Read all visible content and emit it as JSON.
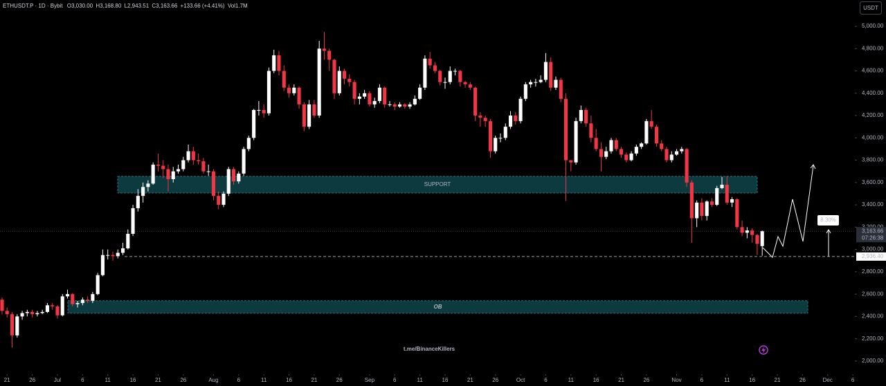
{
  "header": {
    "symbol": "ETHUSDT.P · 1D · Bybit",
    "open": "O3,030.00",
    "high": "H3,168.80",
    "low": "L2,943.51",
    "close": "C3,163.66",
    "change": "+133.66 (+4.41%)",
    "volume": "Vol1.7M"
  },
  "chart_data": {
    "type": "candlestick",
    "up_color": "#ffffff",
    "down_color": "#f23645",
    "candles": [
      [
        2550,
        2570,
        2420,
        2450
      ],
      [
        2450,
        2480,
        2390,
        2420
      ],
      [
        2420,
        2440,
        2120,
        2230
      ],
      [
        2230,
        2420,
        2210,
        2400
      ],
      [
        2400,
        2450,
        2370,
        2430
      ],
      [
        2430,
        2460,
        2400,
        2440
      ],
      [
        2440,
        2460,
        2390,
        2420
      ],
      [
        2420,
        2450,
        2400,
        2430
      ],
      [
        2430,
        2460,
        2420,
        2440
      ],
      [
        2440,
        2520,
        2430,
        2500
      ],
      [
        2500,
        2520,
        2460,
        2490
      ],
      [
        2490,
        2500,
        2380,
        2410
      ],
      [
        2410,
        2600,
        2400,
        2580
      ],
      [
        2580,
        2640,
        2560,
        2600
      ],
      [
        2600,
        2610,
        2490,
        2510
      ],
      [
        2510,
        2540,
        2480,
        2520
      ],
      [
        2520,
        2570,
        2500,
        2550
      ],
      [
        2550,
        2580,
        2520,
        2540
      ],
      [
        2540,
        2620,
        2520,
        2600
      ],
      [
        2600,
        2790,
        2590,
        2770
      ],
      [
        2770,
        3000,
        2760,
        2950
      ],
      [
        2950,
        3000,
        2910,
        2950
      ],
      [
        2950,
        2980,
        2900,
        2940
      ],
      [
        2940,
        3000,
        2920,
        2970
      ],
      [
        2970,
        3060,
        2950,
        3010
      ],
      [
        3010,
        3180,
        3000,
        3140
      ],
      [
        3140,
        3400,
        3120,
        3370
      ],
      [
        3370,
        3540,
        3340,
        3480
      ],
      [
        3480,
        3600,
        3420,
        3560
      ],
      [
        3560,
        3620,
        3520,
        3590
      ],
      [
        3590,
        3780,
        3580,
        3760
      ],
      [
        3760,
        3860,
        3700,
        3750
      ],
      [
        3750,
        3800,
        3640,
        3720
      ],
      [
        3720,
        3760,
        3520,
        3630
      ],
      [
        3630,
        3740,
        3600,
        3700
      ],
      [
        3700,
        3760,
        3680,
        3720
      ],
      [
        3720,
        3830,
        3700,
        3800
      ],
      [
        3800,
        3940,
        3780,
        3880
      ],
      [
        3880,
        3920,
        3760,
        3800
      ],
      [
        3800,
        3860,
        3760,
        3790
      ],
      [
        3790,
        3820,
        3680,
        3700
      ],
      [
        3700,
        3760,
        3660,
        3700
      ],
      [
        3700,
        3720,
        3440,
        3480
      ],
      [
        3480,
        3520,
        3360,
        3400
      ],
      [
        3400,
        3520,
        3380,
        3500
      ],
      [
        3500,
        3740,
        3480,
        3720
      ],
      [
        3720,
        3740,
        3580,
        3610
      ],
      [
        3610,
        3700,
        3590,
        3680
      ],
      [
        3680,
        3920,
        3660,
        3900
      ],
      [
        3900,
        4020,
        3880,
        4000
      ],
      [
        4000,
        4260,
        3980,
        4250
      ],
      [
        4250,
        4330,
        4200,
        4250
      ],
      [
        4250,
        4300,
        4180,
        4220
      ],
      [
        4220,
        4630,
        4200,
        4600
      ],
      [
        4600,
        4790,
        4580,
        4740
      ],
      [
        4740,
        4780,
        4560,
        4600
      ],
      [
        4600,
        4650,
        4420,
        4450
      ],
      [
        4450,
        4480,
        4360,
        4400
      ],
      [
        4400,
        4480,
        4380,
        4450
      ],
      [
        4450,
        4460,
        4260,
        4300
      ],
      [
        4300,
        4320,
        4060,
        4100
      ],
      [
        4100,
        4340,
        4080,
        4300
      ],
      [
        4300,
        4340,
        4180,
        4200
      ],
      [
        4200,
        4870,
        4180,
        4800
      ],
      [
        4800,
        4950,
        4700,
        4780
      ],
      [
        4780,
        4800,
        4600,
        4700
      ],
      [
        4700,
        4710,
        4350,
        4400
      ],
      [
        4400,
        4640,
        4380,
        4600
      ],
      [
        4600,
        4620,
        4480,
        4530
      ],
      [
        4530,
        4570,
        4460,
        4500
      ],
      [
        4500,
        4520,
        4300,
        4350
      ],
      [
        4350,
        4400,
        4300,
        4370
      ],
      [
        4370,
        4430,
        4350,
        4400
      ],
      [
        4400,
        4420,
        4280,
        4300
      ],
      [
        4300,
        4360,
        4270,
        4330
      ],
      [
        4330,
        4480,
        4310,
        4450
      ],
      [
        4450,
        4460,
        4270,
        4300
      ],
      [
        4300,
        4330,
        4280,
        4300
      ],
      [
        4300,
        4320,
        4250,
        4280
      ],
      [
        4280,
        4320,
        4270,
        4300
      ],
      [
        4300,
        4310,
        4260,
        4280
      ],
      [
        4280,
        4320,
        4260,
        4300
      ],
      [
        4300,
        4380,
        4290,
        4350
      ],
      [
        4350,
        4480,
        4340,
        4450
      ],
      [
        4450,
        4740,
        4430,
        4710
      ],
      [
        4710,
        4770,
        4620,
        4650
      ],
      [
        4650,
        4680,
        4580,
        4600
      ],
      [
        4600,
        4610,
        4470,
        4500
      ],
      [
        4500,
        4540,
        4440,
        4500
      ],
      [
        4500,
        4640,
        4480,
        4600
      ],
      [
        4600,
        4620,
        4560,
        4600
      ],
      [
        4600,
        4610,
        4460,
        4500
      ],
      [
        4500,
        4510,
        4450,
        4480
      ],
      [
        4480,
        4500,
        4430,
        4450
      ],
      [
        4450,
        4460,
        4150,
        4200
      ],
      [
        4200,
        4230,
        4100,
        4180
      ],
      [
        4180,
        4200,
        4100,
        4150
      ],
      [
        4150,
        4170,
        3820,
        3880
      ],
      [
        3880,
        4020,
        3860,
        4000
      ],
      [
        4000,
        4040,
        3960,
        4000
      ],
      [
        4000,
        4130,
        3980,
        4100
      ],
      [
        4100,
        4240,
        4080,
        4200
      ],
      [
        4200,
        4230,
        4120,
        4150
      ],
      [
        4150,
        4370,
        4130,
        4350
      ],
      [
        4350,
        4500,
        4330,
        4480
      ],
      [
        4480,
        4520,
        4450,
        4500
      ],
      [
        4500,
        4530,
        4460,
        4500
      ],
      [
        4500,
        4560,
        4490,
        4520
      ],
      [
        4520,
        4760,
        4500,
        4680
      ],
      [
        4680,
        4720,
        4420,
        4450
      ],
      [
        4450,
        4550,
        4430,
        4520
      ],
      [
        4520,
        4540,
        4320,
        4350
      ],
      [
        4350,
        4400,
        3435,
        3800
      ],
      [
        3800,
        3800,
        3700,
        3780
      ],
      [
        3780,
        4180,
        3760,
        4150
      ],
      [
        4150,
        4290,
        4130,
        4250
      ],
      [
        4250,
        4270,
        4100,
        4130
      ],
      [
        4130,
        4200,
        3960,
        4000
      ],
      [
        4000,
        4080,
        3880,
        3900
      ],
      [
        3900,
        3960,
        3700,
        3830
      ],
      [
        3830,
        3920,
        3810,
        3880
      ],
      [
        3880,
        4000,
        3860,
        3980
      ],
      [
        3980,
        4000,
        3880,
        3900
      ],
      [
        3900,
        3920,
        3820,
        3850
      ],
      [
        3850,
        3870,
        3780,
        3800
      ],
      [
        3800,
        3880,
        3790,
        3860
      ],
      [
        3860,
        3940,
        3840,
        3920
      ],
      [
        3920,
        3960,
        3900,
        3950
      ],
      [
        3950,
        4170,
        3940,
        4150
      ],
      [
        4150,
        4250,
        4080,
        4100
      ],
      [
        4100,
        4120,
        3920,
        3950
      ],
      [
        3950,
        3980,
        3880,
        3900
      ],
      [
        3900,
        3920,
        3780,
        3800
      ],
      [
        3800,
        3880,
        3780,
        3850
      ],
      [
        3850,
        3900,
        3840,
        3880
      ],
      [
        3880,
        3920,
        3860,
        3900
      ],
      [
        3900,
        3910,
        3560,
        3600
      ],
      [
        3600,
        3620,
        3060,
        3280
      ],
      [
        3280,
        3440,
        3200,
        3420
      ],
      [
        3420,
        3460,
        3260,
        3300
      ],
      [
        3300,
        3440,
        3260,
        3430
      ],
      [
        3430,
        3460,
        3380,
        3400
      ],
      [
        3400,
        3570,
        3390,
        3550
      ],
      [
        3550,
        3650,
        3540,
        3580
      ],
      [
        3580,
        3660,
        3400,
        3420
      ],
      [
        3420,
        3470,
        3380,
        3450
      ],
      [
        3450,
        3460,
        3180,
        3200
      ],
      [
        3200,
        3260,
        3120,
        3150
      ],
      [
        3150,
        3200,
        3100,
        3170
      ],
      [
        3170,
        3190,
        3060,
        3130
      ],
      [
        3130,
        3140,
        2950,
        3050
      ],
      [
        3030,
        3168.8,
        2943.51,
        3163.66
      ]
    ],
    "ylim": [
      1888,
      5235.5
    ],
    "yticks": [
      {
        "value": 2000,
        "label": "2,000.00"
      },
      {
        "value": 2200,
        "label": "2,200.00"
      },
      {
        "value": 2400,
        "label": "2,400.00"
      },
      {
        "value": 2600,
        "label": "2,600.00"
      },
      {
        "value": 2800,
        "label": "2,800.00"
      },
      {
        "value": 3000,
        "label": "3,000.00"
      },
      {
        "value": 3200,
        "label": "3,200.00"
      },
      {
        "value": 3400,
        "label": "3,400.00"
      },
      {
        "value": 3600,
        "label": "3,600.00"
      },
      {
        "value": 3800,
        "label": "3,800.00"
      },
      {
        "value": 4000,
        "label": "4,000.00"
      },
      {
        "value": 4200,
        "label": "4,200.00"
      },
      {
        "value": 4400,
        "label": "4,400.00"
      },
      {
        "value": 4600,
        "label": "4,600.00"
      },
      {
        "value": 4800,
        "label": "4,800.00"
      },
      {
        "value": 5000,
        "label": "5,000.00"
      }
    ],
    "xlim": [
      -0.41,
      169.4
    ],
    "xticks": [
      {
        "value": 1,
        "label": "21"
      },
      {
        "value": 6,
        "label": "26"
      },
      {
        "value": 11,
        "label": "Jul"
      },
      {
        "value": 16,
        "label": "6"
      },
      {
        "value": 21,
        "label": "11"
      },
      {
        "value": 26,
        "label": "16"
      },
      {
        "value": 31,
        "label": "21"
      },
      {
        "value": 36,
        "label": "26"
      },
      {
        "value": 42,
        "label": "Aug"
      },
      {
        "value": 47,
        "label": "6"
      },
      {
        "value": 52,
        "label": "11"
      },
      {
        "value": 57,
        "label": "16"
      },
      {
        "value": 62,
        "label": "21"
      },
      {
        "value": 67,
        "label": "26"
      },
      {
        "value": 73,
        "label": "Sep"
      },
      {
        "value": 78,
        "label": "6"
      },
      {
        "value": 83,
        "label": "11"
      },
      {
        "value": 88,
        "label": "16"
      },
      {
        "value": 93,
        "label": "21"
      },
      {
        "value": 98,
        "label": "26"
      },
      {
        "value": 103,
        "label": "Oct"
      },
      {
        "value": 108,
        "label": "6"
      },
      {
        "value": 113,
        "label": "11"
      },
      {
        "value": 118,
        "label": "16"
      },
      {
        "value": 123,
        "label": "21"
      },
      {
        "value": 128,
        "label": "26"
      },
      {
        "value": 134,
        "label": "Nov"
      },
      {
        "value": 139,
        "label": "6"
      },
      {
        "value": 144,
        "label": "11"
      },
      {
        "value": 149,
        "label": "16"
      },
      {
        "value": 154,
        "label": "21"
      },
      {
        "value": 159,
        "label": "26"
      },
      {
        "value": 164,
        "label": "Dec"
      },
      {
        "value": 169,
        "label": "6"
      }
    ],
    "currency": "USDT",
    "last_price": {
      "value": 3163.66,
      "label": "3,163.66"
    },
    "countdown": "07:26:38",
    "level": {
      "value": 2936.4,
      "label": "2,936.40"
    },
    "zones": [
      {
        "label": "SUPPORT",
        "low": 3506,
        "high": 3655
      },
      {
        "label": "OB",
        "low": 2428,
        "high": 2540
      }
    ],
    "projection_label": "8.30%",
    "watermark": "t.me/BinanceKillers"
  }
}
